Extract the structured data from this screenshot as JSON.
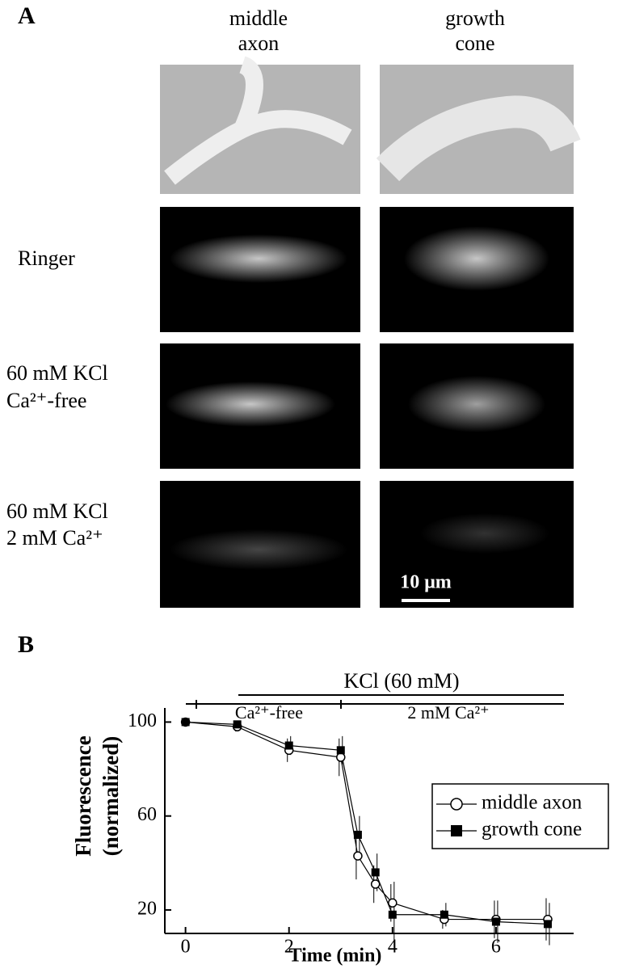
{
  "panel_a": {
    "label": "A",
    "columns": [
      {
        "lines": [
          "middle",
          "axon"
        ]
      },
      {
        "lines": [
          "growth",
          "cone"
        ]
      }
    ],
    "rows": [
      {
        "lines": [
          "Ringer"
        ]
      },
      {
        "lines": [
          "60 mM KCl",
          "Ca²⁺-free"
        ]
      },
      {
        "lines": [
          "60 mM KCl",
          "2 mM Ca²⁺"
        ]
      }
    ],
    "scale_bar": "10 μm"
  },
  "panel_b": {
    "label": "B"
  },
  "chart_data": {
    "type": "line",
    "x": [
      0,
      1,
      2,
      3,
      3.33,
      3.67,
      4,
      5,
      6,
      7
    ],
    "series": [
      {
        "name": "middle axon",
        "color": "#000000",
        "marker": "circle",
        "values": [
          100,
          98,
          88,
          85,
          43,
          31,
          23,
          16,
          16,
          16
        ],
        "errors": [
          1,
          2,
          5,
          8,
          10,
          8,
          8,
          4,
          8,
          9
        ]
      },
      {
        "name": "growth cone",
        "color": "#000000",
        "marker": "square",
        "values": [
          100,
          99,
          90,
          88,
          52,
          36,
          18,
          18,
          15,
          14
        ],
        "errors": [
          1,
          1,
          4,
          6,
          8,
          8,
          14,
          5,
          9,
          9
        ]
      }
    ],
    "xlim": [
      -0.4,
      7.5
    ],
    "ylim": [
      10,
      106
    ],
    "xticks": [
      0,
      2,
      4,
      6
    ],
    "yticks": [
      20,
      60,
      100
    ],
    "xlabel": "Time (min)",
    "ylabel": [
      "Fluorescence",
      "(normalized)"
    ],
    "annotations": [
      "KCl (60 mM)",
      "Ca²⁺-free",
      "2 mM Ca²⁺"
    ],
    "legend": "center right"
  }
}
